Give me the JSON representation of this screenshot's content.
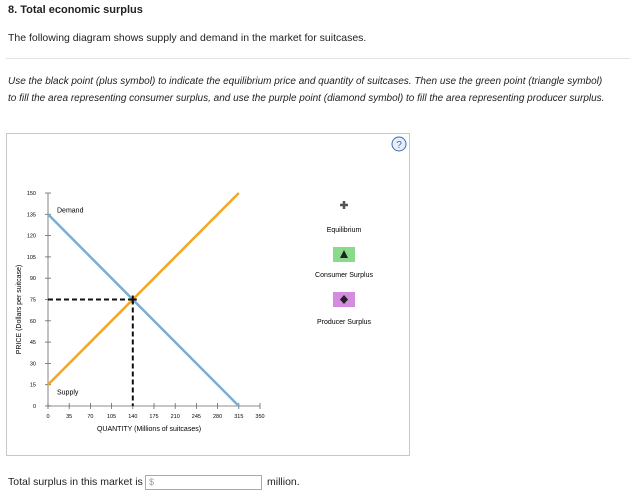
{
  "title": "8. Total economic surplus",
  "intro": "The following diagram shows supply and demand in the market for suitcases.",
  "instructions": "Use the black point (plus symbol) to indicate the equilibrium price and quantity of suitcases. Then use the green point (triangle symbol) to fill the area representing consumer surplus, and use the purple point (diamond symbol) to fill the area representing producer surplus.",
  "help": "?",
  "tools": [
    "Equilibrium",
    "Consumer Surplus",
    "Producer Surplus"
  ],
  "footer": {
    "text": "Total surplus in this market is",
    "placeholder": "$",
    "unit": "million."
  },
  "chart_data": {
    "type": "line",
    "xlabel": "QUANTITY (Millions of suitcases)",
    "ylabel": "PRICE (Dollars per suitcase)",
    "xlim": [
      0,
      350
    ],
    "xticks": [
      0,
      35,
      70,
      105,
      140,
      175,
      210,
      245,
      280,
      315,
      350
    ],
    "ylim": [
      0,
      150
    ],
    "yticks": [
      0,
      15,
      30,
      45,
      60,
      75,
      90,
      105,
      120,
      135,
      150
    ],
    "series": [
      {
        "name": "Demand",
        "color": "#7aaed6",
        "x": [
          0,
          315
        ],
        "values": [
          135,
          0
        ]
      },
      {
        "name": "Supply",
        "color": "#f5a623",
        "x": [
          0,
          315
        ],
        "values": [
          15,
          150
        ]
      }
    ],
    "equilibrium": {
      "x": 140,
      "y": 75
    }
  }
}
